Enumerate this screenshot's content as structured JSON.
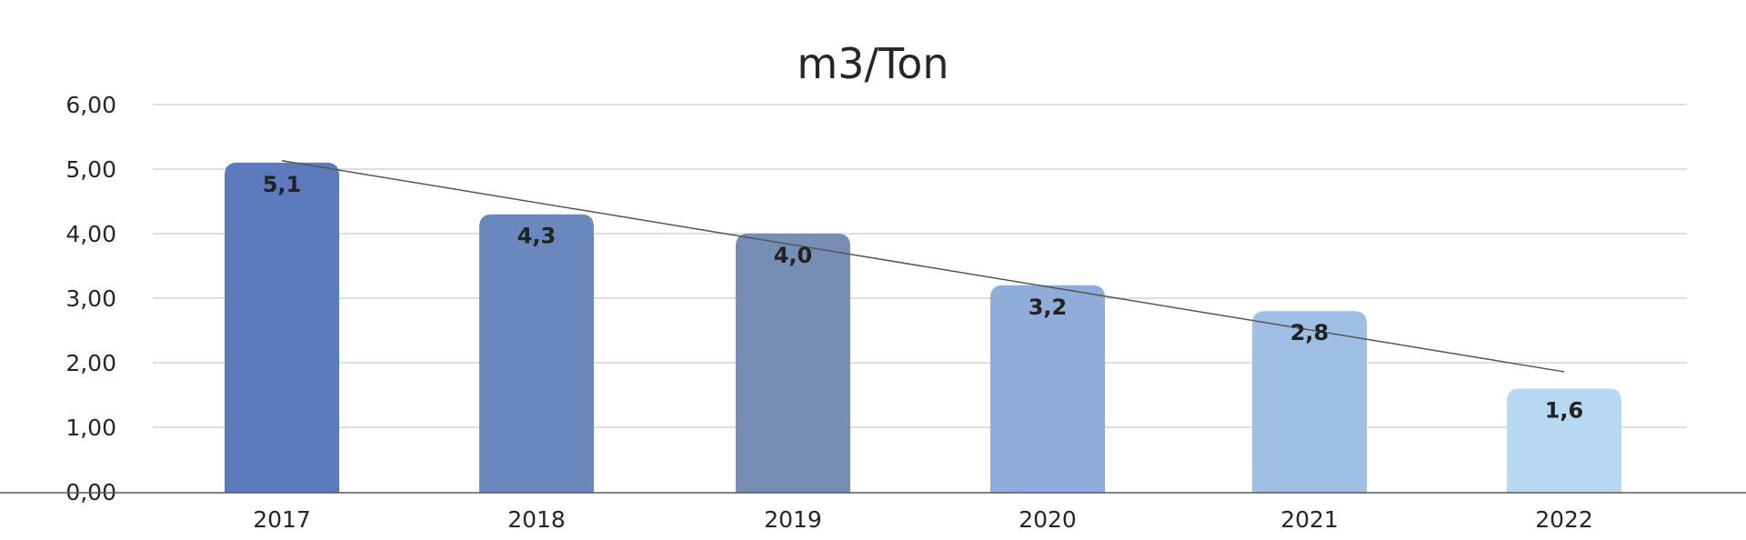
{
  "chart_data": {
    "type": "bar",
    "title": "m3/Ton",
    "xlabel": "",
    "ylabel": "",
    "categories": [
      "2017",
      "2018",
      "2019",
      "2020",
      "2021",
      "2022"
    ],
    "values": [
      5.1,
      4.3,
      4.0,
      3.2,
      2.8,
      1.6
    ],
    "value_labels": [
      "5,1",
      "4,3",
      "4,0",
      "3,2",
      "2,8",
      "1,6"
    ],
    "ylim": [
      0,
      6
    ],
    "y_ticks": [
      0,
      1,
      2,
      3,
      4,
      5,
      6
    ],
    "y_tick_labels": [
      "0,00",
      "1,00",
      "2,00",
      "3,00",
      "4,00",
      "5,00",
      "6,00"
    ],
    "grid": true,
    "legend": "none",
    "bar_colors": [
      "#5b7bbe",
      "#6a88bc",
      "#778eb4",
      "#8fadd8",
      "#9fbfe5",
      "#b8d8f1"
    ],
    "trendline": {
      "type": "linear",
      "color": "#555555",
      "start": 5.13,
      "end": 1.86
    }
  }
}
